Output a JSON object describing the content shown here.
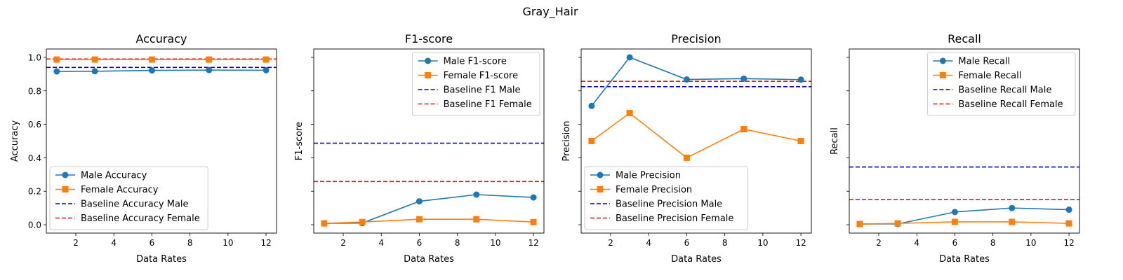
{
  "figure": {
    "suptitle": "Gray_Hair"
  },
  "chart_data": [
    {
      "type": "line",
      "title": "Accuracy",
      "xlabel": "Data Rates",
      "ylabel": "Accuracy",
      "xlim": [
        0.45,
        12.55
      ],
      "ylim": [
        -0.05,
        1.05
      ],
      "xticks": [
        2,
        4,
        6,
        8,
        10,
        12
      ],
      "xtick_labels": [
        "2",
        "4",
        "6",
        "8",
        "10",
        "12"
      ],
      "yticks": [
        0.0,
        0.2,
        0.4,
        0.6,
        0.8,
        1.0
      ],
      "ytick_labels": [
        "0.0",
        "0.2",
        "0.4",
        "0.6",
        "0.8",
        "1.0"
      ],
      "legend_position": "lower-left",
      "x": [
        1,
        3,
        6,
        9,
        12
      ],
      "series": [
        {
          "name": "Male Accuracy",
          "style": "solid-circle",
          "color": "#1f77b4",
          "values": [
            0.916,
            0.917,
            0.922,
            0.924,
            0.923
          ]
        },
        {
          "name": "Female Accuracy",
          "style": "solid-square",
          "color": "#ff7f0e",
          "values": [
            0.987,
            0.987,
            0.987,
            0.987,
            0.987
          ]
        },
        {
          "name": "Baseline Accuracy Male",
          "style": "dashed",
          "color": "#0000cc",
          "value": 0.94
        },
        {
          "name": "Baseline Accuracy Female",
          "style": "dashed",
          "color": "#ee1111",
          "value": 0.99
        }
      ]
    },
    {
      "type": "line",
      "title": "F1-score",
      "xlabel": "Data Rates",
      "ylabel": "F1-score",
      "xlim": [
        0.45,
        12.55
      ],
      "ylim": [
        -0.05,
        1.05
      ],
      "xticks": [
        2,
        4,
        6,
        8,
        10,
        12
      ],
      "xtick_labels": [
        "2",
        "4",
        "6",
        "8",
        "10",
        "12"
      ],
      "yticks": [
        0.0,
        0.2,
        0.4,
        0.6,
        0.8,
        1.0
      ],
      "ytick_labels": [
        "",
        "",
        "",
        "",
        "",
        ""
      ],
      "legend_position": "upper-right",
      "x": [
        1,
        3,
        6,
        9,
        12
      ],
      "series": [
        {
          "name": "Male F1-score",
          "style": "solid-circle",
          "color": "#1f77b4",
          "values": [
            0.008,
            0.01,
            0.14,
            0.18,
            0.163
          ]
        },
        {
          "name": "Female F1-score",
          "style": "solid-square",
          "color": "#ff7f0e",
          "values": [
            0.008,
            0.016,
            0.033,
            0.033,
            0.016
          ]
        },
        {
          "name": "Baseline F1 Male",
          "style": "dashed",
          "color": "#0000cc",
          "value": 0.487
        },
        {
          "name": "Baseline F1 Female",
          "style": "dashed",
          "color": "#ee1111",
          "value": 0.258
        }
      ]
    },
    {
      "type": "line",
      "title": "Precision",
      "xlabel": "Data Rates",
      "ylabel": "Precision",
      "xlim": [
        0.45,
        12.55
      ],
      "ylim": [
        -0.05,
        1.05
      ],
      "xticks": [
        2,
        4,
        6,
        8,
        10,
        12
      ],
      "xtick_labels": [
        "2",
        "4",
        "6",
        "8",
        "10",
        "12"
      ],
      "yticks": [
        0.0,
        0.2,
        0.4,
        0.6,
        0.8,
        1.0
      ],
      "ytick_labels": [
        "",
        "",
        "",
        "",
        "",
        ""
      ],
      "legend_position": "lower-left",
      "x": [
        1,
        3,
        6,
        9,
        12
      ],
      "series": [
        {
          "name": "Male Precision",
          "style": "solid-circle",
          "color": "#1f77b4",
          "values": [
            0.71,
            1.0,
            0.868,
            0.873,
            0.867
          ]
        },
        {
          "name": "Female Precision",
          "style": "solid-square",
          "color": "#ff7f0e",
          "values": [
            0.5,
            0.667,
            0.4,
            0.571,
            0.5
          ]
        },
        {
          "name": "Baseline Precision Male",
          "style": "dashed",
          "color": "#0000cc",
          "value": 0.825
        },
        {
          "name": "Baseline Precision Female",
          "style": "dashed",
          "color": "#ee1111",
          "value": 0.857
        }
      ]
    },
    {
      "type": "line",
      "title": "Recall",
      "xlabel": "Data Rates",
      "ylabel": "Recall",
      "xlim": [
        0.45,
        12.55
      ],
      "ylim": [
        -0.05,
        1.05
      ],
      "xticks": [
        2,
        4,
        6,
        8,
        10,
        12
      ],
      "xtick_labels": [
        "2",
        "4",
        "6",
        "8",
        "10",
        "12"
      ],
      "yticks": [
        0.0,
        0.2,
        0.4,
        0.6,
        0.8,
        1.0
      ],
      "ytick_labels": [
        "",
        "",
        "",
        "",
        "",
        ""
      ],
      "legend_position": "upper-right",
      "x": [
        1,
        3,
        6,
        9,
        12
      ],
      "series": [
        {
          "name": "Male Recall",
          "style": "solid-circle",
          "color": "#1f77b4",
          "values": [
            0.004,
            0.005,
            0.076,
            0.1,
            0.09
          ]
        },
        {
          "name": "Female Recall",
          "style": "solid-square",
          "color": "#ff7f0e",
          "values": [
            0.004,
            0.008,
            0.017,
            0.017,
            0.008
          ]
        },
        {
          "name": "Baseline Recall Male",
          "style": "dashed",
          "color": "#0000cc",
          "value": 0.345
        },
        {
          "name": "Baseline Recall Female",
          "style": "dashed",
          "color": "#ee1111",
          "value": 0.15
        }
      ]
    }
  ]
}
